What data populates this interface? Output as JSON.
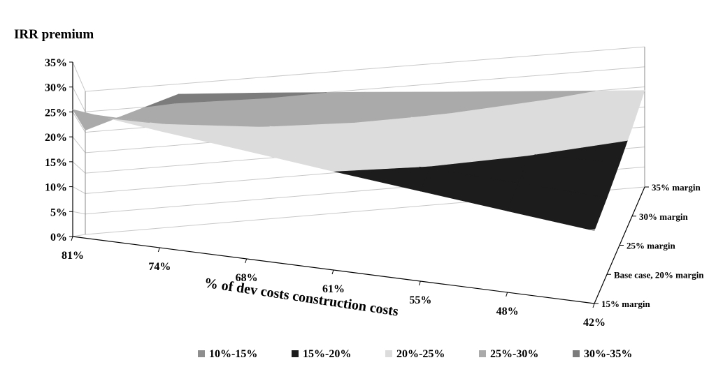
{
  "chart_data": {
    "type": "surface",
    "title": "IRR premium",
    "xlabel": "% of dev costs construction costs",
    "x_categories": [
      "81%",
      "74%",
      "68%",
      "61%",
      "55%",
      "48%",
      "42%"
    ],
    "y_categories": [
      "15% margin",
      "Base case, 20% margin",
      "25% margin",
      "30% margin",
      "35% margin"
    ],
    "z_ticks": [
      "0%",
      "5%",
      "10%",
      "15%",
      "20%",
      "25%",
      "30%",
      "35%"
    ],
    "zlim": [
      0,
      35
    ],
    "z_values": [
      [
        25.5,
        25.5,
        25.5,
        25.5,
        25.5
      ],
      [
        23.5,
        24.9,
        26.7,
        29.3,
        32.5
      ],
      [
        21.8,
        23.2,
        25.2,
        27.7,
        31.0
      ],
      [
        20.0,
        21.5,
        23.5,
        26.0,
        29.3
      ],
      [
        18.3,
        19.8,
        21.8,
        24.3,
        27.5
      ],
      [
        16.6,
        18.1,
        20.1,
        22.6,
        25.8
      ],
      [
        14.9,
        16.4,
        18.4,
        20.9,
        24.1
      ]
    ],
    "bands": [
      {
        "label": "10%-15%",
        "min": 10,
        "max": 15,
        "color": "#8e8e8e"
      },
      {
        "label": "15%-20%",
        "min": 15,
        "max": 20,
        "color": "#1c1c1c"
      },
      {
        "label": "20%-25%",
        "min": 20,
        "max": 25,
        "color": "#dcdcdc"
      },
      {
        "label": "25%-30%",
        "min": 25,
        "max": 30,
        "color": "#aaaaaa"
      },
      {
        "label": "30%-35%",
        "min": 30,
        "max": 35,
        "color": "#7c7c7c"
      }
    ],
    "legend_position": "bottom"
  }
}
